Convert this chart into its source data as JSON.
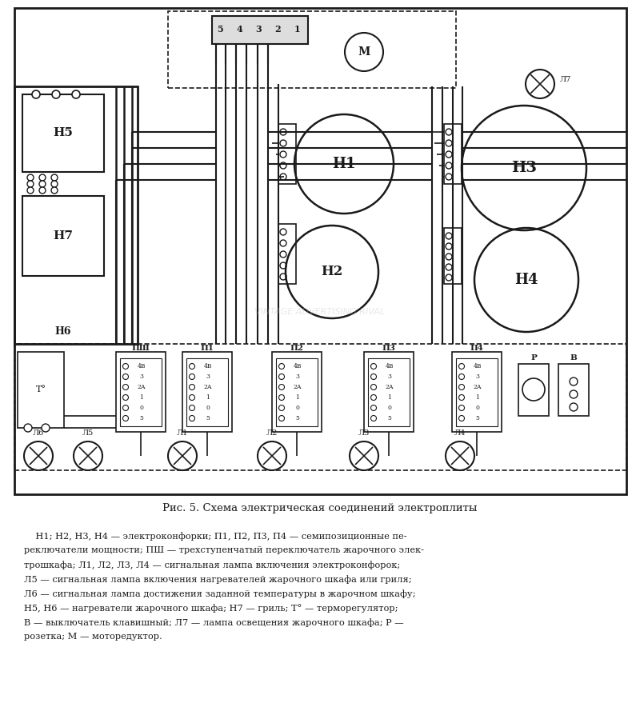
{
  "bg_color": "#ffffff",
  "line_color": "#1a1a1a",
  "title": "Рис. 5. Схема электрическая соединений электроплиты",
  "description_lines": [
    "    Н1; Н2, Н3, Н4 — электроконфорки; П1, П2, П3, П4 — семипозиционные пе-",
    "реключатели мощности; ПШ — трехступенчатый переключатель жарочного элек-",
    "трошкафа; Л1, Л2, Л3, Л4 — сигнальная лампа включения электроконфорок;",
    "Л5 — сигнальная лампа включения нагревателей жарочного шкафа или гриля;",
    "Л6 — сигнальная лампа достижения заданной температуры в жарочном шкафу;",
    "Н5, Н6 — нагреватели жарочного шкафа; Н7 — гриль; Т° — терморегулятор;",
    "В — выключатель клавишный; Л7 — лампа освещения жарочного шкафа; Р —",
    "розетка; М — моторедуктор."
  ],
  "watermark": "VINTAGE ADVERTISING RIVAL"
}
